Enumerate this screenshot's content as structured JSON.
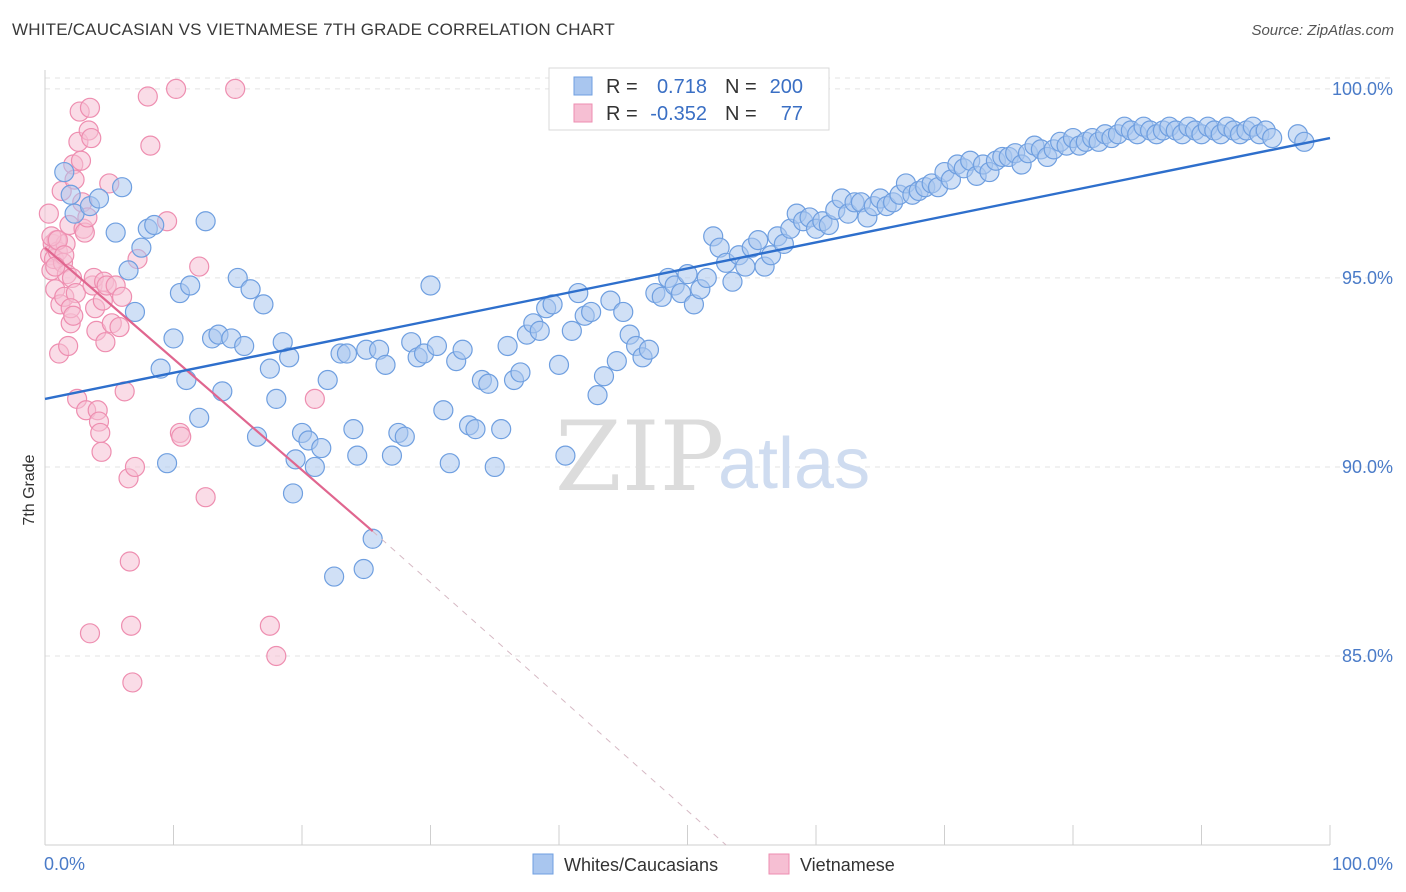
{
  "title": "WHITE/CAUCASIAN VS VIETNAMESE 7TH GRADE CORRELATION CHART",
  "source": "Source: ZipAtlas.com",
  "colors": {
    "blue": "#6f9fe0",
    "blue_fill": "#a9c6ef",
    "blue_line": "#2e6fcc",
    "pink": "#ee8eb0",
    "pink_fill": "#f6bfd3",
    "pink_line": "#e0668f",
    "axis_text": "#4a7bc8"
  },
  "legend": {
    "r_label": "R =",
    "n_label": "N =",
    "blue_r": "0.718",
    "blue_n": "200",
    "pink_r": "-0.352",
    "pink_n": "77"
  },
  "bottom_legend": {
    "blue": "Whites/Caucasians",
    "pink": "Vietnamese"
  },
  "watermark": {
    "zip": "ZIP",
    "atlas": "atlas"
  },
  "chart_data": {
    "type": "scatter",
    "title": "WHITE/CAUCASIAN VS VIETNAMESE 7TH GRADE CORRELATION CHART",
    "xlabel": "",
    "ylabel": "7th Grade",
    "xlim": [
      0,
      100
    ],
    "ylim": [
      80.0,
      100.5
    ],
    "x_tick_labels": [
      "0.0%",
      "100.0%"
    ],
    "y_ticks": [
      85,
      90,
      95,
      100
    ],
    "y_tick_labels": [
      "85.0%",
      "90.0%",
      "95.0%",
      "100.0%"
    ],
    "grid": true,
    "legend_position": "top-center",
    "series": [
      {
        "name": "Whites/Caucasians",
        "color": "blue",
        "r": 0.718,
        "n": 200,
        "trend": {
          "x0": 0,
          "y0": 91.8,
          "x1": 100,
          "y1": 98.7
        },
        "points": [
          [
            1.5,
            97.8
          ],
          [
            2,
            97.2
          ],
          [
            2.3,
            96.7
          ],
          [
            3.5,
            96.9
          ],
          [
            4.2,
            97.1
          ],
          [
            5.5,
            96.2
          ],
          [
            6,
            97.4
          ],
          [
            6.5,
            95.2
          ],
          [
            7,
            94.1
          ],
          [
            7.5,
            95.8
          ],
          [
            8,
            96.3
          ],
          [
            8.5,
            96.4
          ],
          [
            9,
            92.6
          ],
          [
            9.5,
            90.1
          ],
          [
            10,
            93.4
          ],
          [
            10.5,
            94.6
          ],
          [
            11,
            92.3
          ],
          [
            11.3,
            94.8
          ],
          [
            12,
            91.3
          ],
          [
            12.5,
            96.5
          ],
          [
            13,
            93.4
          ],
          [
            13.5,
            93.5
          ],
          [
            13.8,
            92.0
          ],
          [
            14.5,
            93.4
          ],
          [
            15,
            95.0
          ],
          [
            15.5,
            93.2
          ],
          [
            16,
            94.7
          ],
          [
            16.5,
            90.8
          ],
          [
            17,
            94.3
          ],
          [
            17.5,
            92.6
          ],
          [
            18,
            91.8
          ],
          [
            18.5,
            93.3
          ],
          [
            19,
            92.9
          ],
          [
            19.3,
            89.3
          ],
          [
            19.5,
            90.2
          ],
          [
            20,
            90.9
          ],
          [
            20.5,
            90.7
          ],
          [
            21,
            90.0
          ],
          [
            21.5,
            90.5
          ],
          [
            22,
            92.3
          ],
          [
            22.5,
            87.1
          ],
          [
            23,
            93.0
          ],
          [
            23.5,
            93.0
          ],
          [
            24,
            91.0
          ],
          [
            24.3,
            90.3
          ],
          [
            24.8,
            87.3
          ],
          [
            25,
            93.1
          ],
          [
            25.5,
            88.1
          ],
          [
            26,
            93.1
          ],
          [
            26.5,
            92.7
          ],
          [
            27,
            90.3
          ],
          [
            27.5,
            90.9
          ],
          [
            28,
            90.8
          ],
          [
            28.5,
            93.3
          ],
          [
            29,
            92.9
          ],
          [
            29.5,
            93.0
          ],
          [
            30,
            94.8
          ],
          [
            30.5,
            93.2
          ],
          [
            31,
            91.5
          ],
          [
            31.5,
            90.1
          ],
          [
            32,
            92.8
          ],
          [
            32.5,
            93.1
          ],
          [
            33,
            91.1
          ],
          [
            33.5,
            91.0
          ],
          [
            34,
            92.3
          ],
          [
            34.5,
            92.2
          ],
          [
            35,
            90.0
          ],
          [
            35.5,
            91.0
          ],
          [
            36,
            93.2
          ],
          [
            36.5,
            92.3
          ],
          [
            37,
            92.5
          ],
          [
            37.5,
            93.5
          ],
          [
            38,
            93.8
          ],
          [
            38.5,
            93.6
          ],
          [
            39,
            94.2
          ],
          [
            39.5,
            94.3
          ],
          [
            40,
            92.7
          ],
          [
            40.5,
            90.3
          ],
          [
            41,
            93.6
          ],
          [
            41.5,
            94.6
          ],
          [
            42,
            94.0
          ],
          [
            42.5,
            94.1
          ],
          [
            43,
            91.9
          ],
          [
            43.5,
            92.4
          ],
          [
            44,
            94.4
          ],
          [
            44.5,
            92.8
          ],
          [
            45,
            94.1
          ],
          [
            45.5,
            93.5
          ],
          [
            46,
            93.2
          ],
          [
            46.5,
            92.9
          ],
          [
            47,
            93.1
          ],
          [
            47.5,
            94.6
          ],
          [
            48,
            94.5
          ],
          [
            48.5,
            95.0
          ],
          [
            49,
            94.8
          ],
          [
            49.5,
            94.6
          ],
          [
            50,
            95.1
          ],
          [
            50.5,
            94.3
          ],
          [
            51,
            94.7
          ],
          [
            51.5,
            95.0
          ],
          [
            52,
            96.1
          ],
          [
            52.5,
            95.8
          ],
          [
            53,
            95.4
          ],
          [
            53.5,
            94.9
          ],
          [
            54,
            95.6
          ],
          [
            54.5,
            95.3
          ],
          [
            55,
            95.8
          ],
          [
            55.5,
            96.0
          ],
          [
            56,
            95.3
          ],
          [
            56.5,
            95.6
          ],
          [
            57,
            96.1
          ],
          [
            57.5,
            95.9
          ],
          [
            58,
            96.3
          ],
          [
            58.5,
            96.7
          ],
          [
            59,
            96.5
          ],
          [
            59.5,
            96.6
          ],
          [
            60,
            96.3
          ],
          [
            60.5,
            96.5
          ],
          [
            61,
            96.4
          ],
          [
            61.5,
            96.8
          ],
          [
            62,
            97.1
          ],
          [
            62.5,
            96.7
          ],
          [
            63,
            97.0
          ],
          [
            63.5,
            97.0
          ],
          [
            64,
            96.6
          ],
          [
            64.5,
            96.9
          ],
          [
            65,
            97.1
          ],
          [
            65.5,
            96.9
          ],
          [
            66,
            97.0
          ],
          [
            66.5,
            97.2
          ],
          [
            67,
            97.5
          ],
          [
            67.5,
            97.2
          ],
          [
            68,
            97.3
          ],
          [
            68.5,
            97.4
          ],
          [
            69,
            97.5
          ],
          [
            69.5,
            97.4
          ],
          [
            70,
            97.8
          ],
          [
            70.5,
            97.6
          ],
          [
            71,
            98.0
          ],
          [
            71.5,
            97.9
          ],
          [
            72,
            98.1
          ],
          [
            72.5,
            97.7
          ],
          [
            73,
            98.0
          ],
          [
            73.5,
            97.8
          ],
          [
            74,
            98.1
          ],
          [
            74.5,
            98.2
          ],
          [
            75,
            98.2
          ],
          [
            75.5,
            98.3
          ],
          [
            76,
            98.0
          ],
          [
            76.5,
            98.3
          ],
          [
            77,
            98.5
          ],
          [
            77.5,
            98.4
          ],
          [
            78,
            98.2
          ],
          [
            78.5,
            98.4
          ],
          [
            79,
            98.6
          ],
          [
            79.5,
            98.5
          ],
          [
            80,
            98.7
          ],
          [
            80.5,
            98.5
          ],
          [
            81,
            98.6
          ],
          [
            81.5,
            98.7
          ],
          [
            82,
            98.6
          ],
          [
            82.5,
            98.8
          ],
          [
            83,
            98.7
          ],
          [
            83.5,
            98.8
          ],
          [
            84,
            99.0
          ],
          [
            84.5,
            98.9
          ],
          [
            85,
            98.8
          ],
          [
            85.5,
            99.0
          ],
          [
            86,
            98.9
          ],
          [
            86.5,
            98.8
          ],
          [
            87,
            98.9
          ],
          [
            87.5,
            99.0
          ],
          [
            88,
            98.9
          ],
          [
            88.5,
            98.8
          ],
          [
            89,
            99.0
          ],
          [
            89.5,
            98.9
          ],
          [
            90,
            98.8
          ],
          [
            90.5,
            99.0
          ],
          [
            91,
            98.9
          ],
          [
            91.5,
            98.8
          ],
          [
            92,
            99.0
          ],
          [
            92.5,
            98.9
          ],
          [
            93,
            98.8
          ],
          [
            93.5,
            98.9
          ],
          [
            94,
            99.0
          ],
          [
            94.5,
            98.8
          ],
          [
            95,
            98.9
          ],
          [
            95.5,
            98.7
          ],
          [
            97.5,
            98.8
          ],
          [
            98,
            98.6
          ]
        ]
      },
      {
        "name": "Vietnamese",
        "color": "pink",
        "r": -0.352,
        "n": 77,
        "trend": {
          "x0": 0,
          "y0": 95.8,
          "x1": 25.5,
          "y1": 88.3,
          "dash_x1": 53,
          "dash_y1": 80.0
        },
        "points": [
          [
            0.3,
            96.7
          ],
          [
            0.4,
            95.6
          ],
          [
            0.5,
            95.2
          ],
          [
            0.6,
            95.9
          ],
          [
            0.7,
            95.5
          ],
          [
            0.8,
            94.7
          ],
          [
            0.9,
            96.0
          ],
          [
            1.0,
            95.7
          ],
          [
            1.1,
            93.0
          ],
          [
            1.2,
            94.3
          ],
          [
            1.3,
            97.3
          ],
          [
            1.4,
            95.4
          ],
          [
            1.5,
            94.5
          ],
          [
            1.6,
            95.9
          ],
          [
            1.7,
            95.1
          ],
          [
            1.8,
            93.2
          ],
          [
            1.9,
            96.4
          ],
          [
            2.0,
            93.8
          ],
          [
            2.1,
            95.0
          ],
          [
            2.2,
            98.0
          ],
          [
            2.3,
            97.6
          ],
          [
            2.4,
            94.6
          ],
          [
            2.5,
            91.8
          ],
          [
            2.6,
            98.6
          ],
          [
            2.7,
            99.4
          ],
          [
            2.8,
            98.1
          ],
          [
            2.9,
            97.0
          ],
          [
            3.0,
            96.3
          ],
          [
            3.1,
            96.2
          ],
          [
            3.2,
            91.5
          ],
          [
            3.3,
            96.6
          ],
          [
            3.4,
            98.9
          ],
          [
            3.5,
            99.5
          ],
          [
            3.6,
            98.7
          ],
          [
            3.7,
            94.8
          ],
          [
            3.8,
            95.0
          ],
          [
            3.9,
            94.2
          ],
          [
            4.0,
            93.6
          ],
          [
            4.1,
            91.5
          ],
          [
            4.2,
            91.2
          ],
          [
            4.3,
            90.9
          ],
          [
            4.4,
            90.4
          ],
          [
            4.5,
            94.4
          ],
          [
            4.6,
            94.9
          ],
          [
            4.7,
            93.3
          ],
          [
            4.8,
            94.8
          ],
          [
            5.0,
            97.5
          ],
          [
            5.2,
            93.8
          ],
          [
            5.5,
            94.8
          ],
          [
            5.8,
            93.7
          ],
          [
            6.0,
            94.5
          ],
          [
            6.2,
            92.0
          ],
          [
            6.5,
            89.7
          ],
          [
            6.6,
            87.5
          ],
          [
            6.7,
            85.8
          ],
          [
            6.8,
            84.3
          ],
          [
            7.0,
            90.0
          ],
          [
            7.2,
            95.5
          ],
          [
            8.0,
            99.8
          ],
          [
            8.2,
            98.5
          ],
          [
            9.5,
            96.5
          ],
          [
            10.2,
            100.0
          ],
          [
            10.5,
            90.9
          ],
          [
            10.6,
            90.8
          ],
          [
            12.0,
            95.3
          ],
          [
            12.5,
            89.2
          ],
          [
            14.8,
            100.0
          ],
          [
            17.5,
            85.8
          ],
          [
            18.0,
            85.0
          ],
          [
            21.0,
            91.8
          ],
          [
            0.5,
            96.1
          ],
          [
            1.0,
            96.0
          ],
          [
            1.5,
            95.6
          ],
          [
            2.0,
            94.2
          ],
          [
            3.5,
            85.6
          ],
          [
            0.8,
            95.3
          ],
          [
            2.2,
            94.0
          ]
        ]
      }
    ]
  }
}
